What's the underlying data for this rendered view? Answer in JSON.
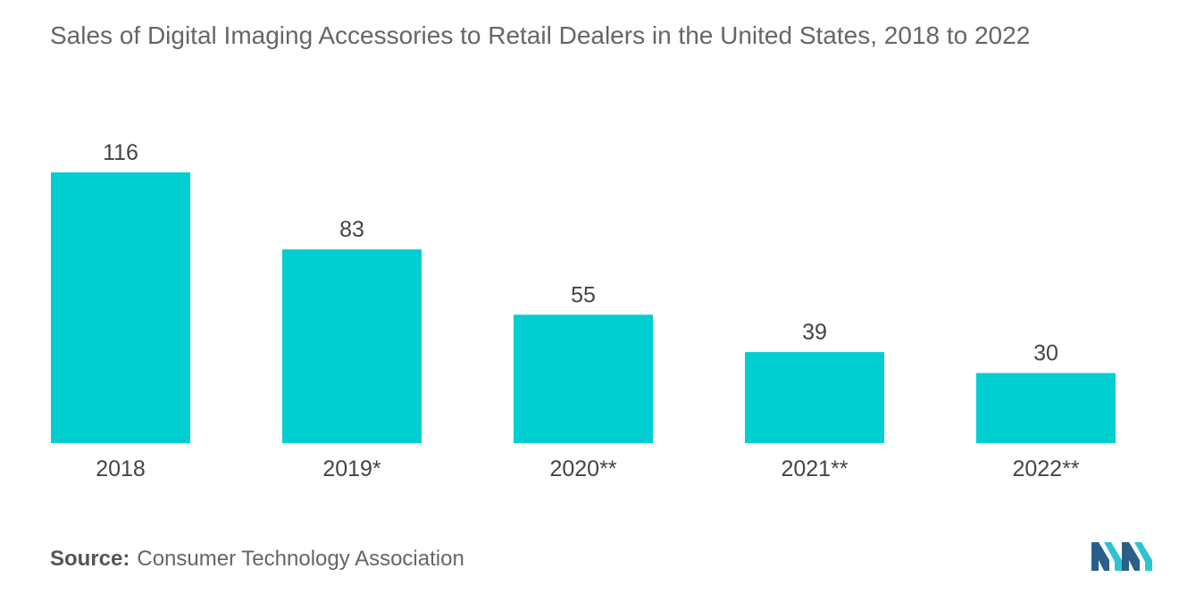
{
  "title": "Sales of Digital Imaging Accessories to Retail Dealers in the United States, 2018 to 2022",
  "source": {
    "label": "Source:",
    "text": "Consumer Technology Association"
  },
  "colors": {
    "bar": "#00CED1",
    "text": "#444444",
    "title": "#666666",
    "logo_dark": "#2A5F8A",
    "logo_light": "#2EC4CF"
  },
  "chart_data": {
    "type": "bar",
    "title": "Sales of Digital Imaging Accessories to Retail Dealers in the United States, 2018 to 2022",
    "categories": [
      "2018",
      "2019*",
      "2020**",
      "2021**",
      "2022**"
    ],
    "values": [
      116,
      83,
      55,
      39,
      30
    ],
    "xlabel": "",
    "ylabel": "",
    "ylim": [
      0,
      116
    ],
    "grid": false,
    "legend": "none",
    "data_labels": true
  }
}
